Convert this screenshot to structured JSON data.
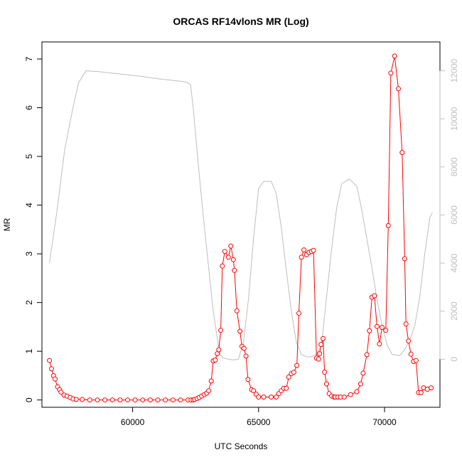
{
  "chart_data": {
    "type": "line",
    "title": "ORCAS RF14vlonS MR (Log)",
    "xlabel": "UTC Seconds",
    "ylabel": "MR",
    "xlim": [
      56400,
      72200
    ],
    "ylim": [
      -0.15,
      7.35
    ],
    "y2lim": [
      -2000,
      13200
    ],
    "x_ticks": [
      60000,
      65000,
      70000
    ],
    "y_ticks": [
      0,
      1,
      2,
      3,
      4,
      5,
      6,
      7
    ],
    "y2_ticks": [
      0,
      2000,
      4000,
      6000,
      8000,
      10000,
      12000
    ],
    "colors": {
      "mr": "#ff0000",
      "altitude": "#bebebe",
      "axis": "#000000",
      "axis2": "#bebebe"
    },
    "series": [
      {
        "axis": "left",
        "style": "line+points",
        "x": [
          56700,
          56780,
          56860,
          56920,
          57020,
          57100,
          57160,
          57280,
          57400,
          57520,
          57640,
          57760,
          58000,
          58300,
          58600,
          58900,
          59200,
          59500,
          59800,
          60100,
          60400,
          60700,
          61000,
          61300,
          61600,
          61900,
          62200,
          62320,
          62400,
          62460,
          62560,
          62640,
          62740,
          62840,
          62940,
          63020,
          63120,
          63200,
          63280,
          63360,
          63420,
          63500,
          63560,
          63660,
          63800,
          63900,
          64000,
          64040,
          64140,
          64260,
          64340,
          64420,
          64500,
          64580,
          64720,
          64800,
          64900,
          65000,
          65200,
          65500,
          65700,
          65800,
          65900,
          66000,
          66100,
          66200,
          66300,
          66400,
          66520,
          66600,
          66700,
          66800,
          66900,
          67000,
          67100,
          67180,
          67300,
          67380,
          67420,
          67480,
          67560,
          67620,
          67700,
          67800,
          67900,
          68000,
          68050,
          68150,
          68250,
          68400,
          68650,
          68900,
          69050,
          69150,
          69300,
          69400,
          69500,
          69600,
          69700,
          69800,
          69900,
          70050,
          70150,
          70250,
          70400,
          70550,
          70700,
          70800,
          70850,
          70950,
          71050,
          71150,
          71250,
          71350,
          71450,
          71550,
          71700,
          71850
        ],
        "y": [
          0.81,
          0.64,
          0.5,
          0.43,
          0.27,
          0.21,
          0.16,
          0.1,
          0.08,
          0.05,
          0.02,
          0.01,
          0.01,
          0.0,
          0.0,
          0.0,
          0.0,
          0.0,
          0.0,
          0.0,
          0.0,
          0.0,
          0.0,
          0.0,
          0.0,
          0.0,
          0.0,
          0.0,
          0.0,
          0.01,
          0.03,
          0.05,
          0.08,
          0.11,
          0.14,
          0.19,
          0.39,
          0.8,
          0.82,
          0.95,
          1.03,
          1.43,
          2.75,
          3.05,
          2.93,
          3.16,
          2.88,
          2.66,
          1.83,
          1.41,
          1.1,
          1.06,
          0.9,
          0.42,
          0.21,
          0.19,
          0.12,
          0.06,
          0.06,
          0.06,
          0.06,
          0.13,
          0.19,
          0.24,
          0.24,
          0.47,
          0.54,
          0.57,
          0.71,
          1.78,
          2.93,
          3.08,
          2.98,
          3.03,
          3.05,
          3.07,
          0.86,
          0.84,
          0.95,
          1.14,
          1.26,
          0.57,
          0.33,
          0.13,
          0.08,
          0.06,
          0.06,
          0.06,
          0.06,
          0.06,
          0.11,
          0.17,
          0.33,
          0.55,
          0.93,
          1.42,
          2.11,
          2.14,
          1.51,
          1.15,
          1.49,
          1.43,
          3.58,
          6.71,
          7.06,
          6.39,
          5.08,
          2.9,
          1.56,
          1.21,
          0.94,
          0.79,
          0.81,
          0.15,
          0.15,
          0.25,
          0.22,
          0.25
        ]
      },
      {
        "axis": "right",
        "style": "line",
        "x": [
          56700,
          57000,
          57300,
          57600,
          57850,
          58150,
          58600,
          59200,
          59800,
          60400,
          61000,
          61600,
          62000,
          62200,
          62300,
          62400,
          62600,
          62800,
          63000,
          63200,
          63400,
          63500,
          63600,
          63800,
          64000,
          64200,
          64400,
          64600,
          64800,
          65000,
          65200,
          65500,
          65700,
          65900,
          66100,
          66300,
          66500,
          66700,
          66900,
          67100,
          67300,
          67500,
          67700,
          67900,
          68100,
          68300,
          68600,
          68900,
          69100,
          69300,
          69500,
          69700,
          69900,
          70100,
          70300,
          70600,
          70800,
          71000,
          71200,
          71400,
          71600,
          71800,
          71900
        ],
        "y": [
          4000,
          6200,
          8700,
          10300,
          11500,
          12000,
          11970,
          11900,
          11830,
          11760,
          11670,
          11600,
          11550,
          11500,
          11420,
          10500,
          8200,
          6000,
          4000,
          2000,
          600,
          150,
          50,
          0,
          -30,
          0,
          700,
          2500,
          5000,
          7100,
          7400,
          7400,
          6900,
          5500,
          3700,
          2000,
          700,
          200,
          100,
          100,
          200,
          600,
          2600,
          4600,
          6300,
          7300,
          7500,
          7200,
          6200,
          5000,
          3800,
          2500,
          1400,
          600,
          200,
          150,
          400,
          800,
          1400,
          2600,
          4400,
          5900,
          6100
        ]
      }
    ]
  }
}
